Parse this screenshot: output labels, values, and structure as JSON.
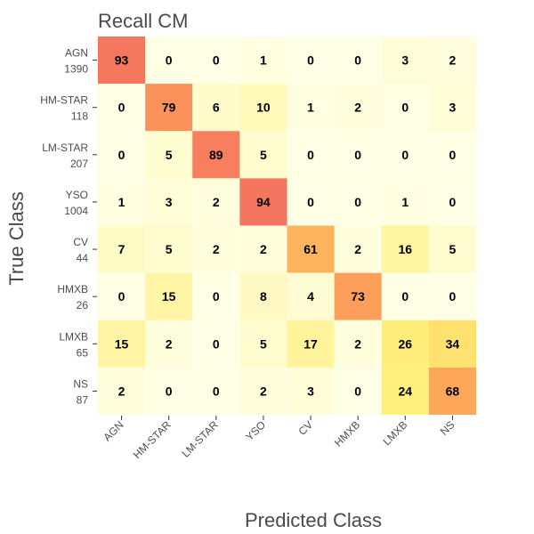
{
  "chart_data": {
    "type": "heatmap",
    "title": "Recall CM",
    "xlabel": "Predicted Class",
    "ylabel": "True Class",
    "x_categories": [
      "AGN",
      "HM-STAR",
      "LM-STAR",
      "YSO",
      "CV",
      "HMXB",
      "LMXB",
      "NS"
    ],
    "y_categories": [
      "AGN",
      "HM-STAR",
      "LM-STAR",
      "YSO",
      "CV",
      "HMXB",
      "LMXB",
      "NS"
    ],
    "y_counts": [
      "1390",
      "118",
      "207",
      "1004",
      "44",
      "26",
      "65",
      "87"
    ],
    "values": [
      [
        93,
        0,
        0,
        1,
        0,
        0,
        3,
        2
      ],
      [
        0,
        79,
        6,
        10,
        1,
        2,
        0,
        3
      ],
      [
        0,
        5,
        89,
        5,
        0,
        0,
        0,
        0
      ],
      [
        1,
        3,
        2,
        94,
        0,
        0,
        1,
        0
      ],
      [
        7,
        5,
        2,
        2,
        61,
        2,
        16,
        5
      ],
      [
        0,
        15,
        0,
        8,
        4,
        73,
        0,
        0
      ],
      [
        15,
        2,
        0,
        5,
        17,
        2,
        26,
        34
      ],
      [
        2,
        0,
        0,
        2,
        3,
        0,
        24,
        68
      ]
    ],
    "color_range": [
      0,
      100
    ],
    "colors": [
      "#ffffe5",
      "#ffef7a",
      "#fec85f",
      "#fd9a5a",
      "#f26a5f"
    ],
    "grid": false,
    "legend": "none"
  }
}
